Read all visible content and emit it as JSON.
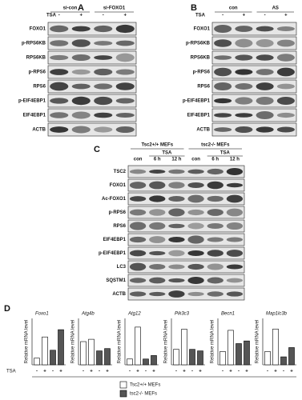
{
  "panels": [
    {
      "label": "A",
      "groups": [
        "si-con",
        "si-FOXO1"
      ],
      "treatment": "TSA",
      "lanes": [
        "-",
        "+",
        "-",
        "+"
      ],
      "rows": [
        "FOXO1",
        "p-RPS6KB",
        "RPS6KB",
        "p-RPS6",
        "RPS6",
        "p-EIF4EBP1",
        "EIF4EBP1",
        "ACTB"
      ]
    },
    {
      "label": "B",
      "groups": [
        "con",
        "AS"
      ],
      "treatment": "TSA",
      "lanes": [
        "-",
        "+",
        "-",
        "+"
      ],
      "rows": [
        "FOXO1",
        "p-RPS6KB",
        "RPS6KB",
        "p-RPS6",
        "RPS6",
        "p-EIF4EBP1",
        "EIF4EBP1",
        "ACTB"
      ]
    },
    {
      "label": "C",
      "groups": [
        "Tsc2+/+ MEFs",
        "tsc2-/- MEFs"
      ],
      "treatment": "TSA",
      "lanes": [
        "con",
        "6 h",
        "12 h",
        "con",
        "6 h",
        "12 h"
      ],
      "rows": [
        "TSC2",
        "FOXO1",
        "Ac-FOXO1",
        "p-RPS6",
        "RPS6",
        "EIF4EBP1",
        "p-EIF4EBP1",
        "LC3",
        "SQSTM1",
        "ACTB"
      ]
    }
  ],
  "figure_d": {
    "label": "D",
    "x_label": "TSA",
    "legend": [
      {
        "label": "Tsc2+/+ MEFs",
        "color": "#ffffff"
      },
      {
        "label": "tsc2-/- MEFs",
        "color": "#555555"
      }
    ]
  },
  "chart_data": [
    {
      "type": "bar",
      "title": "Foxo1",
      "y_label": "Relative mRNA level",
      "categories": [
        "-",
        "+",
        "-",
        "+"
      ],
      "values": [
        1,
        4.2,
        2.2,
        5.3
      ],
      "colors": [
        "#ffffff",
        "#ffffff",
        "#555555",
        "#555555"
      ],
      "ylim": [
        0,
        7
      ]
    },
    {
      "type": "bar",
      "title": "Atg4b",
      "y_label": "Relative mRNA level",
      "categories": [
        "-",
        "+",
        "-",
        "+"
      ],
      "values": [
        1,
        1.1,
        0.6,
        0.7
      ],
      "colors": [
        "#ffffff",
        "#ffffff",
        "#555555",
        "#555555"
      ],
      "ylim": [
        0,
        2
      ]
    },
    {
      "type": "bar",
      "title": "Atg12",
      "y_label": "Relative mRNA level",
      "categories": [
        "-",
        "+",
        "-",
        "+"
      ],
      "values": [
        1,
        6.5,
        1,
        1.6
      ],
      "colors": [
        "#ffffff",
        "#ffffff",
        "#555555",
        "#555555"
      ],
      "ylim": [
        0,
        8
      ]
    },
    {
      "type": "bar",
      "title": "Pik3c3",
      "y_label": "Relative mRNA level",
      "categories": [
        "-",
        "+",
        "-",
        "+"
      ],
      "values": [
        1,
        2.3,
        1,
        0.9
      ],
      "colors": [
        "#ffffff",
        "#ffffff",
        "#555555",
        "#555555"
      ],
      "ylim": [
        0,
        3
      ]
    },
    {
      "type": "bar",
      "title": "Becn1",
      "y_label": "Relative mRNA level",
      "categories": [
        "-",
        "+",
        "-",
        "+"
      ],
      "values": [
        1,
        2.6,
        1.6,
        1.8
      ],
      "colors": [
        "#ffffff",
        "#ffffff",
        "#555555",
        "#555555"
      ],
      "ylim": [
        0,
        3.5
      ]
    },
    {
      "type": "bar",
      "title": "Map1lc3b",
      "y_label": "Relative mRNA level",
      "categories": [
        "-",
        "+",
        "-",
        "+"
      ],
      "values": [
        1,
        2.7,
        0.6,
        1.3
      ],
      "colors": [
        "#ffffff",
        "#ffffff",
        "#555555",
        "#555555"
      ],
      "ylim": [
        0,
        3.5
      ]
    }
  ]
}
